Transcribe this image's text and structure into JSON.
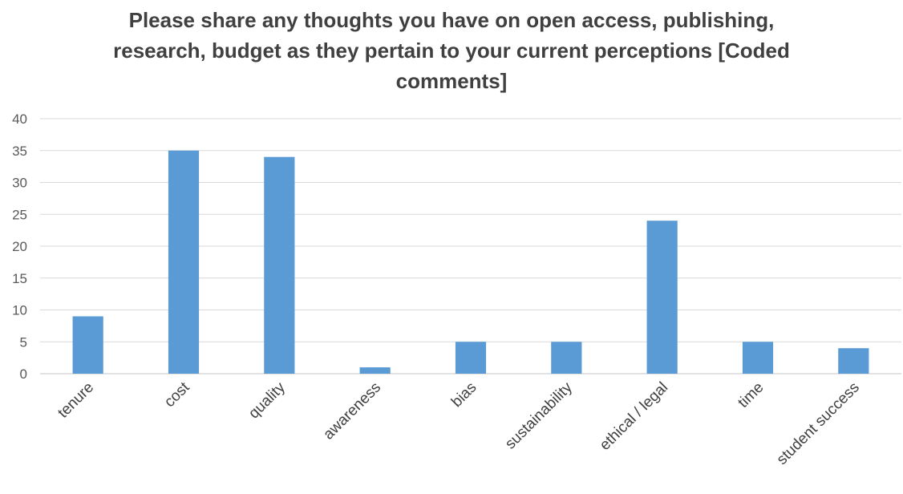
{
  "chart_data": {
    "type": "bar",
    "title_lines": [
      "Please share any thoughts you have on open access, publishing,",
      "research, budget as they pertain to your current perceptions [Coded",
      "comments]"
    ],
    "title": "Please share any thoughts you have on open access, publishing, research, budget as they pertain to your current perceptions [Coded comments]",
    "categories": [
      "tenure",
      "cost",
      "quality",
      "awareness",
      "bias",
      "sustainability",
      "ethical / legal",
      "time",
      "student success"
    ],
    "values": [
      9,
      35,
      34,
      1,
      5,
      5,
      24,
      5,
      4
    ],
    "ylim": [
      0,
      40
    ],
    "yticks": [
      0,
      5,
      10,
      15,
      20,
      25,
      30,
      35,
      40
    ],
    "grid": true,
    "bar_color": "#5b9bd5",
    "xlabel": "",
    "ylabel": ""
  }
}
